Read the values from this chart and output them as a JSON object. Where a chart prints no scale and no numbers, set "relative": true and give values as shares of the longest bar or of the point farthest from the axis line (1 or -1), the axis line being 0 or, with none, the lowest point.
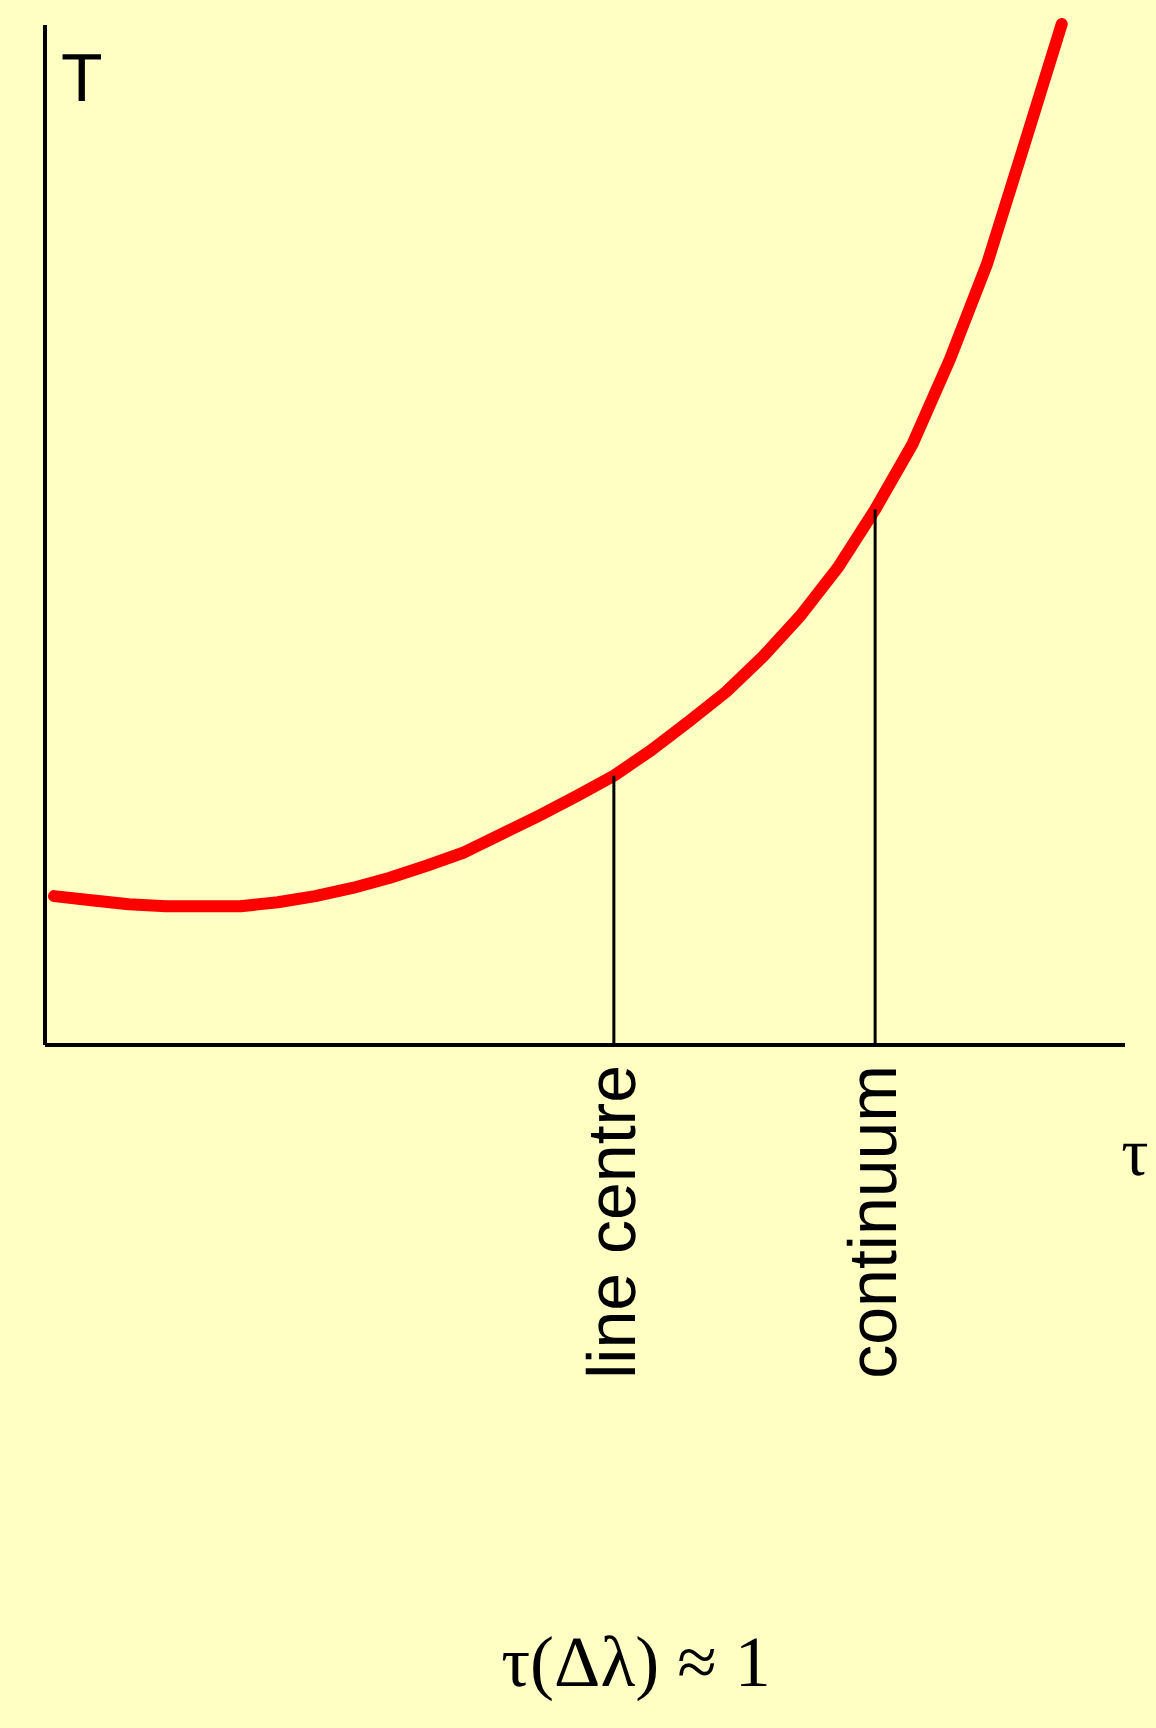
{
  "chart_data": {
    "type": "line",
    "relative": true,
    "categories": [
      null,
      null,
      null,
      null,
      null,
      null,
      null,
      null,
      null,
      null,
      null,
      null,
      null,
      null,
      null,
      "line centre",
      null,
      null,
      null,
      null,
      null,
      null,
      "continuum",
      null,
      null,
      null,
      null,
      null
    ],
    "series": [
      {
        "color": "#ff0000",
        "values": [
          0.145,
          0.141,
          0.137,
          0.135,
          0.135,
          0.135,
          0.139,
          0.145,
          0.153,
          0.163,
          0.175,
          0.188,
          0.206,
          0.224,
          0.243,
          0.263,
          0.288,
          0.316,
          0.345,
          0.38,
          0.42,
          0.467,
          0.524,
          0.588,
          0.671,
          0.765,
          0.882,
          1.0
        ]
      },
      {
        "type": "bar",
        "color": "#000000",
        "values": [
          null,
          null,
          null,
          null,
          null,
          null,
          null,
          null,
          null,
          null,
          null,
          null,
          null,
          null,
          null,
          0.263,
          null,
          null,
          null,
          null,
          null,
          null,
          0.524,
          null,
          null,
          null,
          null,
          null
        ]
      }
    ],
    "xlabel": "τ",
    "ylabel": "T",
    "annotations": [
      "τ(Δλ) ≈ 1"
    ]
  }
}
